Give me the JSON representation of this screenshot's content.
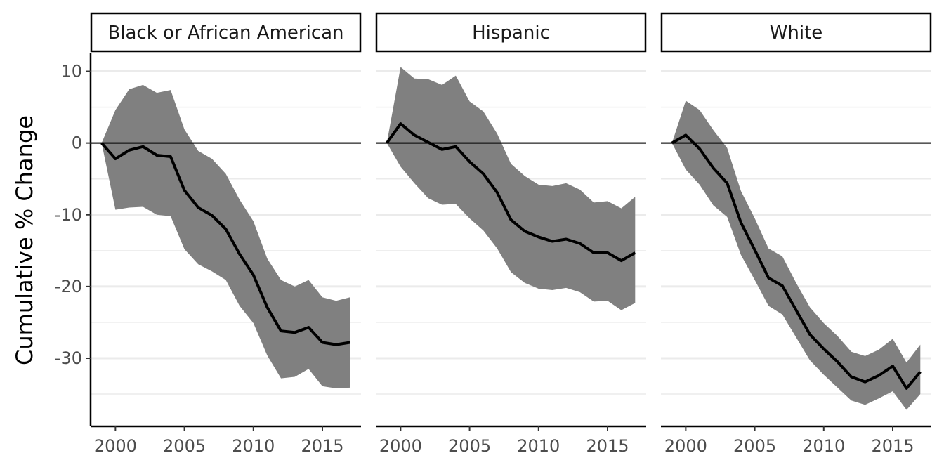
{
  "chart_data": {
    "type": "line",
    "ylabel": "Cumulative % Change",
    "xlabel": "",
    "xlim": [
      1998.2,
      2017.8
    ],
    "ylim": [
      -39.5,
      12.5
    ],
    "x_ticks": [
      2000,
      2005,
      2010,
      2015
    ],
    "y_ticks": [
      10,
      0,
      -10,
      -20,
      -30
    ],
    "y_tick_labels": [
      "10",
      "0",
      "-10",
      "-20",
      "-30"
    ],
    "y_minor_grid": [
      5,
      -5,
      -15,
      -25,
      -35
    ],
    "reference_line_y": 0,
    "grid": "horizontal",
    "ribbon_color": "#808080",
    "line_color": "#000000",
    "x": [
      1999,
      2000,
      2001,
      2002,
      2003,
      2004,
      2005,
      2006,
      2007,
      2008,
      2009,
      2010,
      2011,
      2012,
      2013,
      2014,
      2015,
      2016,
      2017
    ],
    "panels": [
      {
        "name": "Black or African American",
        "values": [
          0,
          -2.2,
          -1.0,
          -0.5,
          -1.7,
          -1.9,
          -6.6,
          -9.0,
          -10.1,
          -12.0,
          -15.5,
          -18.4,
          -22.9,
          -26.2,
          -26.4,
          -25.7,
          -27.8,
          -28.1,
          -27.8
        ],
        "upper": [
          0,
          4.6,
          7.5,
          8.1,
          7.0,
          7.4,
          1.9,
          -1.1,
          -2.2,
          -4.3,
          -7.9,
          -10.9,
          -16.1,
          -19.1,
          -20.0,
          -19.1,
          -21.5,
          -22.0,
          -21.5
        ],
        "lower": [
          0,
          -9.3,
          -9.0,
          -8.9,
          -10.0,
          -10.2,
          -14.8,
          -16.9,
          -17.9,
          -19.1,
          -22.7,
          -25.1,
          -29.6,
          -32.8,
          -32.6,
          -31.5,
          -33.9,
          -34.2,
          -34.1
        ]
      },
      {
        "name": "Hispanic",
        "values": [
          0,
          2.7,
          1.1,
          0.1,
          -0.9,
          -0.5,
          -2.6,
          -4.3,
          -6.9,
          -10.7,
          -12.3,
          -13.1,
          -13.7,
          -13.4,
          -14.0,
          -15.3,
          -15.3,
          -16.4,
          -15.3
        ],
        "upper": [
          0,
          10.6,
          9.0,
          8.9,
          8.1,
          9.4,
          5.8,
          4.4,
          1.3,
          -2.9,
          -4.6,
          -5.8,
          -6.0,
          -5.6,
          -6.5,
          -8.3,
          -8.1,
          -9.1,
          -7.5
        ],
        "lower": [
          0,
          -3.3,
          -5.6,
          -7.7,
          -8.6,
          -8.5,
          -10.5,
          -12.2,
          -14.7,
          -18.0,
          -19.5,
          -20.3,
          -20.5,
          -20.2,
          -20.8,
          -22.1,
          -22.0,
          -23.3,
          -22.3
        ]
      },
      {
        "name": "White",
        "values": [
          0,
          1.1,
          -0.8,
          -3.5,
          -5.6,
          -11.1,
          -14.9,
          -18.8,
          -19.9,
          -23.3,
          -26.7,
          -28.7,
          -30.5,
          -32.6,
          -33.3,
          -32.4,
          -31.1,
          -34.2,
          -31.9
        ],
        "upper": [
          0,
          5.9,
          4.6,
          1.8,
          -0.7,
          -6.7,
          -10.5,
          -14.7,
          -15.8,
          -19.5,
          -22.9,
          -25.1,
          -26.9,
          -29.1,
          -29.7,
          -28.8,
          -27.3,
          -30.6,
          -28.1
        ],
        "lower": [
          0,
          -3.7,
          -5.8,
          -8.7,
          -10.3,
          -15.6,
          -19.1,
          -22.7,
          -23.9,
          -27.1,
          -30.3,
          -32.3,
          -34.1,
          -35.9,
          -36.5,
          -35.6,
          -34.6,
          -37.2,
          -35.0
        ]
      }
    ]
  }
}
